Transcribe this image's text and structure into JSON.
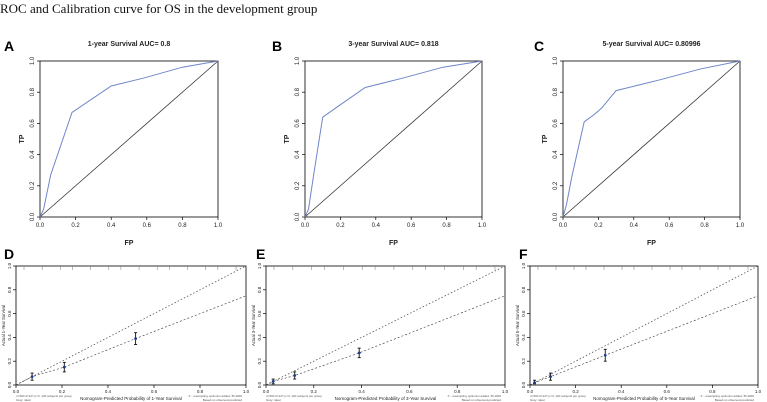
{
  "heading": "ROC and Calibration curve for OS in the development group",
  "colors": {
    "roc_curve": "#6f86c9",
    "axis": "#000000",
    "calibration_point": "#1a3a8a",
    "reference_line": "#555555"
  },
  "chart_data": [
    {
      "panel": "A",
      "type": "line",
      "title": "1-year Survival AUC= 0.8",
      "xlabel": "FP",
      "ylabel": "TP",
      "xlim": [
        0,
        1
      ],
      "ylim": [
        0,
        1
      ],
      "xticks": [
        "0.0",
        "0.2",
        "0.4",
        "0.6",
        "0.8",
        "1.0"
      ],
      "yticks": [
        "0.0",
        "0.2",
        "0.4",
        "0.6",
        "0.8",
        "1.0"
      ],
      "roc": [
        [
          0,
          0
        ],
        [
          0.02,
          0.05
        ],
        [
          0.06,
          0.27
        ],
        [
          0.18,
          0.67
        ],
        [
          0.4,
          0.84
        ],
        [
          0.58,
          0.89
        ],
        [
          0.8,
          0.96
        ],
        [
          1,
          1
        ]
      ]
    },
    {
      "panel": "B",
      "type": "line",
      "title": "3-year Survival AUC= 0.818",
      "xlabel": "FP",
      "ylabel": "TP",
      "xlim": [
        0,
        1
      ],
      "ylim": [
        0,
        1
      ],
      "xticks": [
        "0.0",
        "0.2",
        "0.4",
        "0.6",
        "0.8",
        "1.0"
      ],
      "yticks": [
        "0.0",
        "0.2",
        "0.4",
        "0.6",
        "0.8",
        "1.0"
      ],
      "roc": [
        [
          0,
          0
        ],
        [
          0.02,
          0.05
        ],
        [
          0.05,
          0.28
        ],
        [
          0.1,
          0.64
        ],
        [
          0.2,
          0.72
        ],
        [
          0.34,
          0.83
        ],
        [
          0.55,
          0.89
        ],
        [
          0.78,
          0.96
        ],
        [
          1,
          1
        ]
      ]
    },
    {
      "panel": "C",
      "type": "line",
      "title": "5-year Survival AUC= 0.80996",
      "xlabel": "FP",
      "ylabel": "TP",
      "xlim": [
        0,
        1
      ],
      "ylim": [
        0,
        1
      ],
      "xticks": [
        "0.0",
        "0.2",
        "0.4",
        "0.6",
        "0.8",
        "1.0"
      ],
      "yticks": [
        "0.0",
        "0.2",
        "0.4",
        "0.6",
        "0.8",
        "1.0"
      ],
      "roc": [
        [
          0,
          0
        ],
        [
          0.02,
          0.08
        ],
        [
          0.05,
          0.26
        ],
        [
          0.12,
          0.61
        ],
        [
          0.18,
          0.66
        ],
        [
          0.22,
          0.7
        ],
        [
          0.3,
          0.81
        ],
        [
          0.55,
          0.88
        ],
        [
          0.78,
          0.95
        ],
        [
          1,
          1
        ]
      ]
    },
    {
      "panel": "D",
      "type": "scatter",
      "xlabel": "Nomogram-Predicted Probability of 1-Year Survival",
      "ylabel": "Actual 1-Year Survival",
      "xlim": [
        0,
        1
      ],
      "ylim": [
        0,
        1
      ],
      "xticks": [
        "0.0",
        "0.2",
        "0.4",
        "0.6",
        "0.8",
        "1.0"
      ],
      "yticks": [
        "0.0",
        "0.2",
        "0.4",
        "0.6",
        "0.8",
        "1.0"
      ],
      "footnote_left": "n=360 d=127 p=3, 120 subjects per group\nGray: ideal",
      "footnote_right": "X - resampling optimism added, B=1000\nBased on observed-predicted",
      "points": [
        {
          "x": 0.07,
          "y": 0.07,
          "lo": 0.04,
          "hi": 0.1
        },
        {
          "x": 0.21,
          "y": 0.15,
          "lo": 0.11,
          "hi": 0.19
        },
        {
          "x": 0.52,
          "y": 0.39,
          "lo": 0.34,
          "hi": 0.44
        }
      ]
    },
    {
      "panel": "E",
      "type": "scatter",
      "xlabel": "Nomogram-Predicted Probability of 3-Year Survival",
      "ylabel": "Actual 3-Year Survival",
      "xlim": [
        0,
        1
      ],
      "ylim": [
        0,
        1
      ],
      "xticks": [
        "0.0",
        "0.2",
        "0.4",
        "0.6",
        "0.8",
        "1.0"
      ],
      "yticks": [
        "0.0",
        "0.2",
        "0.4",
        "0.6",
        "0.8",
        "1.0"
      ],
      "footnote_left": "n=360 d=127 p=3, 120 subjects per group\nGray: ideal",
      "footnote_right": "X - resampling optimism added, B=1000\nBased on observed-predicted",
      "points": [
        {
          "x": 0.03,
          "y": 0.03,
          "lo": 0.01,
          "hi": 0.05
        },
        {
          "x": 0.12,
          "y": 0.08,
          "lo": 0.05,
          "hi": 0.11
        },
        {
          "x": 0.39,
          "y": 0.27,
          "lo": 0.23,
          "hi": 0.31
        }
      ]
    },
    {
      "panel": "F",
      "type": "scatter",
      "xlabel": "Nomogram-Predicted Probability of 5-Year Survival",
      "ylabel": "Actual 5-Year Survival",
      "xlim": [
        0,
        1
      ],
      "ylim": [
        0,
        1
      ],
      "xticks": [
        "0.0",
        "0.2",
        "0.4",
        "0.6",
        "0.8",
        "1.0"
      ],
      "yticks": [
        "0.0",
        "0.2",
        "0.4",
        "0.6",
        "0.8",
        "1.0"
      ],
      "footnote_left": "n=360 d=127 p=3, 120 subjects per group\nGray: ideal",
      "footnote_right": "X - resampling optimism added, B=1000\nBased on observed-predicted",
      "points": [
        {
          "x": 0.02,
          "y": 0.02,
          "lo": 0.01,
          "hi": 0.04
        },
        {
          "x": 0.09,
          "y": 0.07,
          "lo": 0.04,
          "hi": 0.1
        },
        {
          "x": 0.33,
          "y": 0.25,
          "lo": 0.2,
          "hi": 0.3
        }
      ]
    }
  ]
}
